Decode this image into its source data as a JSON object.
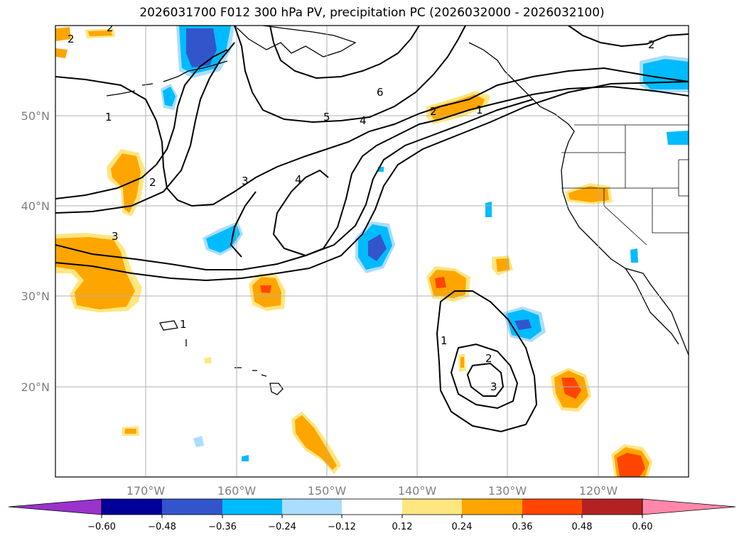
{
  "title": "2026031700 F012 300 hPa PV, precipitation PC (2026032000 - 2026032100)",
  "map": {
    "lon_labels": [
      "170°W",
      "160°W",
      "150°W",
      "140°W",
      "130°W",
      "120°W"
    ],
    "lat_labels": [
      "50°N",
      "40°N",
      "30°N",
      "20°N"
    ],
    "pv_contour_levels": [
      "1",
      "2",
      "3",
      "4",
      "5",
      "6"
    ],
    "contour_labels": {
      "a": "1",
      "b": "2",
      "c": "3",
      "d": "4",
      "e": "5",
      "f": "6",
      "g": "4",
      "h": "2",
      "i": "1",
      "j": "2",
      "k": "1",
      "l": "1",
      "m": "2",
      "n": "3",
      "o": "3",
      "p": "2",
      "q": "2"
    }
  },
  "colorbar": {
    "ticks": [
      "−0.60",
      "−0.48",
      "−0.36",
      "−0.24",
      "−0.12",
      "0.12",
      "0.24",
      "0.36",
      "0.48",
      "0.60"
    ],
    "colors": [
      "#9933cc",
      "#000099",
      "#3355cc",
      "#00bbff",
      "#aaddff",
      "#ffffff",
      "#ffe680",
      "#ffa500",
      "#ff4500",
      "#b22222",
      "#ff88aa"
    ]
  },
  "colors": {
    "land_line": "#000000",
    "grid": "#b0b0b0",
    "pos_light": "#ffe680",
    "pos_mid": "#ffa500",
    "pos_high": "#ff4500",
    "neg_light": "#aaddff",
    "neg_mid": "#00bbff",
    "neg_high": "#3355cc"
  }
}
